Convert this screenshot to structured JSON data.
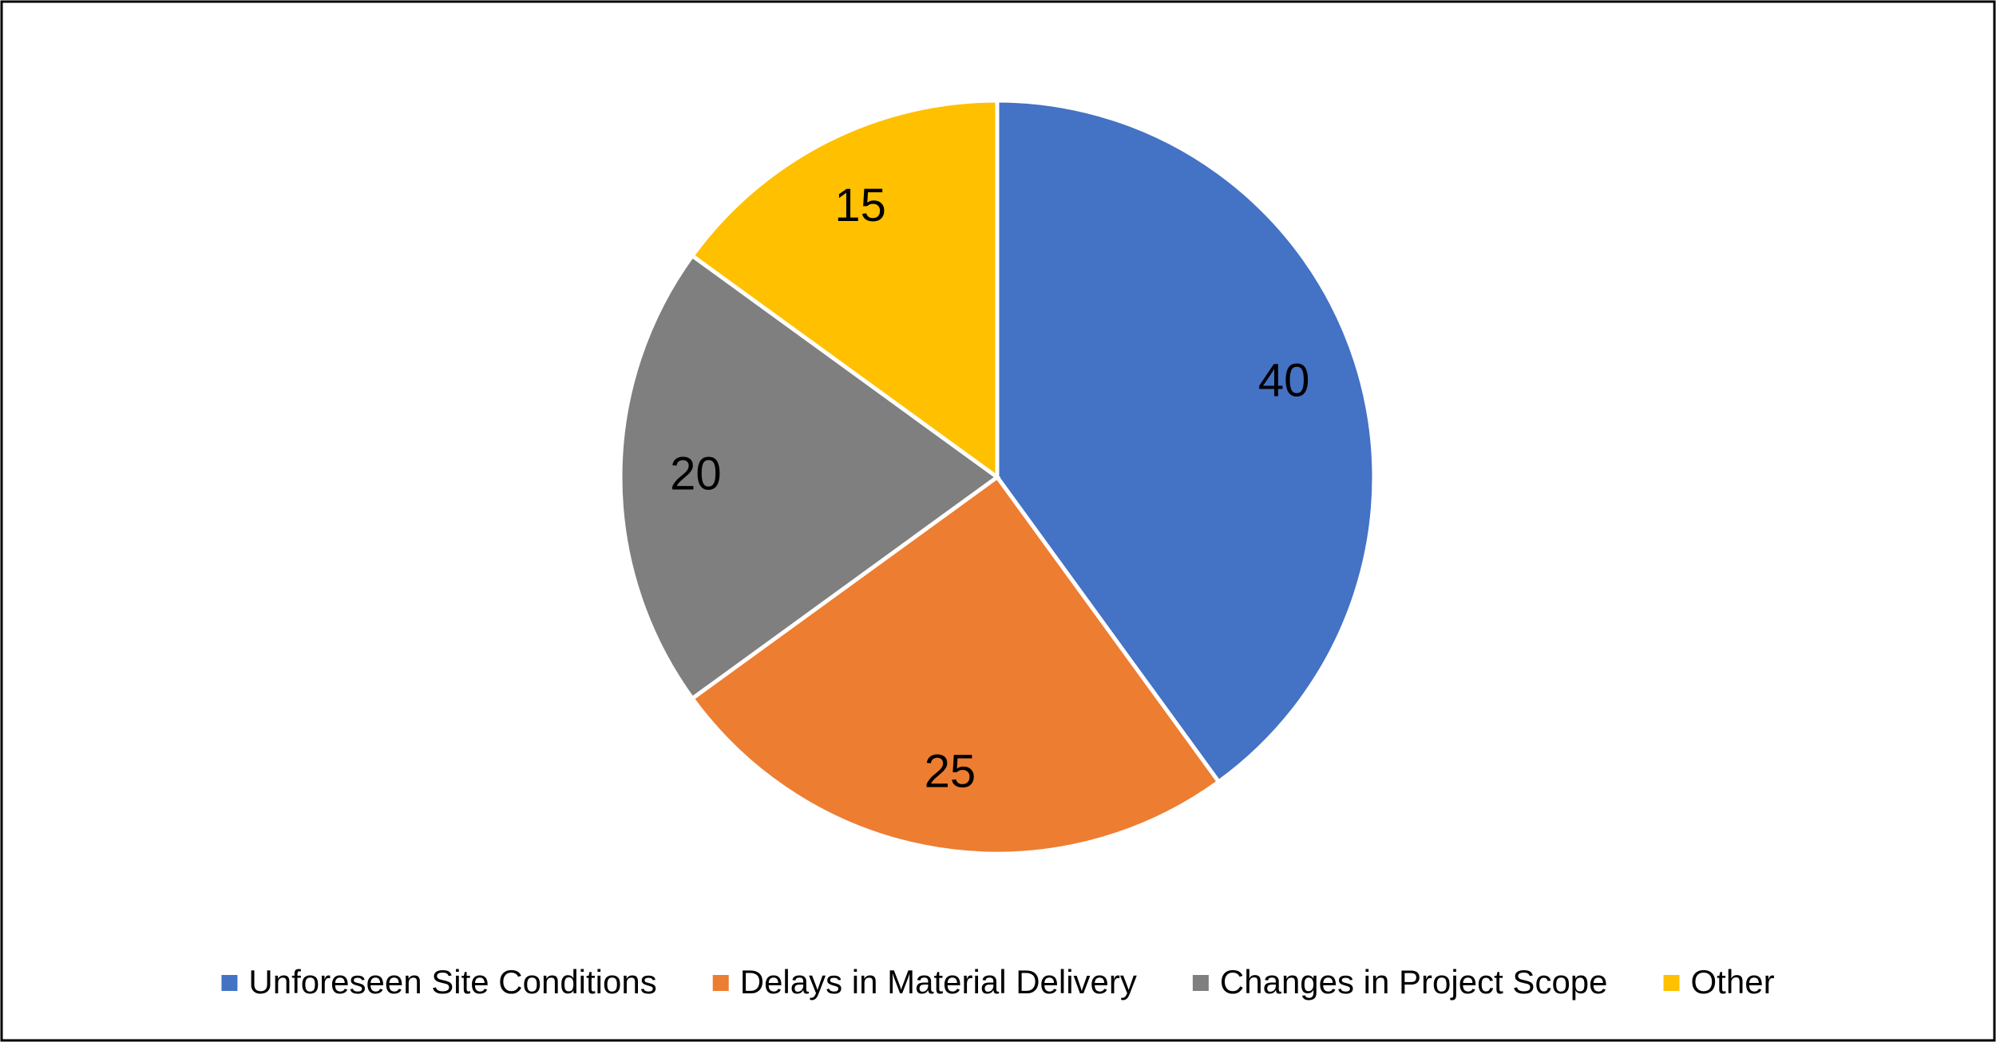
{
  "chart_data": {
    "type": "pie",
    "categories": [
      "Unforeseen Site Conditions",
      "Delays in Material Delivery",
      "Changes in Project Scope",
      "Other"
    ],
    "values": [
      40,
      25,
      20,
      15
    ],
    "colors": [
      "#4472c4",
      "#ed7d31",
      "#7f7f7f",
      "#ffc000"
    ],
    "legend": "bottom"
  }
}
